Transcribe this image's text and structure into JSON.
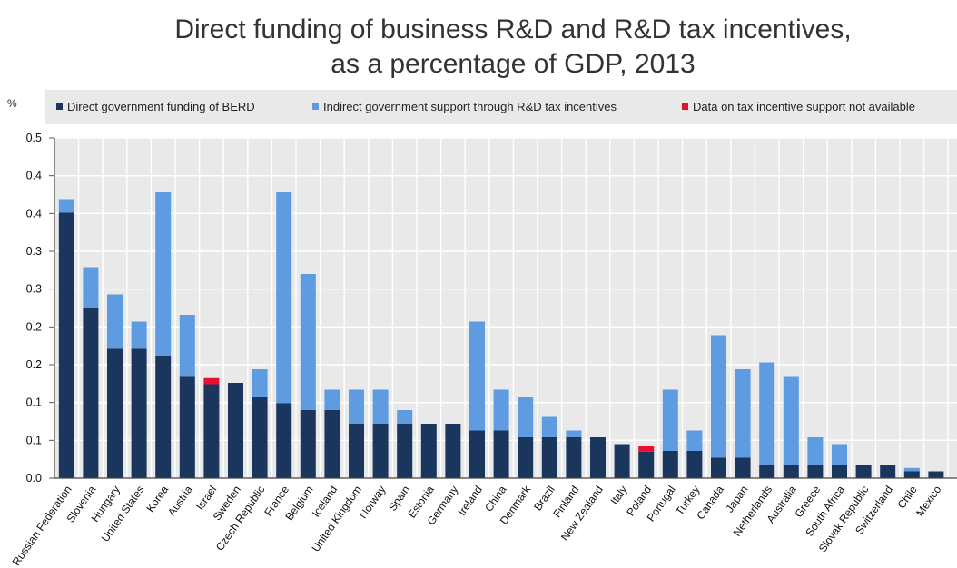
{
  "chart_data": {
    "type": "bar",
    "stacked": true,
    "title": "Direct funding of business R&D and R&D tax incentives,",
    "subtitle": "as a percentage of GDP, 2013",
    "ylabel": "%",
    "ylim": [
      0,
      0.5
    ],
    "y_tick_labels": [
      "0.0",
      "0.1",
      "0.1",
      "0.2",
      "0.2",
      "0.3",
      "0.3",
      "0.4",
      "0.4",
      "0.5"
    ],
    "grid": true,
    "legend_position": "top",
    "colors": {
      "direct": "#1b365d",
      "indirect": "#5e9be0",
      "not_available": "#e8102d",
      "plot_bg": "#e9e9e9",
      "legend_bg": "#e9e9e9",
      "grid": "#ffffff"
    },
    "categories": [
      "Russian Federation",
      "Slovenia",
      "Hungary",
      "United States",
      "Korea",
      "Austria",
      "Israel",
      "Sweden",
      "Czech Republic",
      "France",
      "Belgium",
      "Iceland",
      "United Kingdom",
      "Norway",
      "Spain",
      "Estonia",
      "Germany",
      "Ireland",
      "China",
      "Denmark",
      "Brazil",
      "Finland",
      "New Zealand",
      "Italy",
      "Poland",
      "Portugal",
      "Turkey",
      "Canada",
      "Japan",
      "Netherlands",
      "Australia",
      "Greece",
      "South Africa",
      "Slovak Republic",
      "Switzerland",
      "Chile",
      "Mexico"
    ],
    "series": [
      {
        "name": "Direct government funding of BERD",
        "key": "direct",
        "values": [
          0.39,
          0.25,
          0.19,
          0.19,
          0.18,
          0.15,
          0.138,
          0.14,
          0.12,
          0.11,
          0.1,
          0.1,
          0.08,
          0.08,
          0.08,
          0.08,
          0.08,
          0.07,
          0.07,
          0.06,
          0.06,
          0.06,
          0.06,
          0.05,
          0.039,
          0.04,
          0.04,
          0.03,
          0.03,
          0.02,
          0.02,
          0.02,
          0.02,
          0.02,
          0.02,
          0.01,
          0.01
        ]
      },
      {
        "name": "Indirect government support through R&D tax incentives",
        "key": "indirect",
        "values": [
          0.02,
          0.06,
          0.08,
          0.04,
          0.24,
          0.09,
          0.0,
          0.0,
          0.04,
          0.31,
          0.2,
          0.03,
          0.05,
          0.05,
          0.02,
          0.0,
          0.0,
          0.16,
          0.06,
          0.06,
          0.03,
          0.01,
          0.0,
          0.0,
          0.0,
          0.09,
          0.03,
          0.18,
          0.13,
          0.15,
          0.13,
          0.04,
          0.03,
          0.0,
          0.0,
          0.005,
          0.0
        ]
      },
      {
        "name": "Data on tax incentive support not available",
        "key": "not_available",
        "values": [
          0,
          0,
          0,
          0,
          0,
          0,
          0.009,
          0,
          0,
          0,
          0,
          0,
          0,
          0,
          0,
          0,
          0,
          0,
          0,
          0,
          0,
          0,
          0,
          0,
          0.008,
          0,
          0,
          0,
          0,
          0,
          0,
          0,
          0,
          0,
          0,
          0,
          0
        ]
      }
    ]
  }
}
